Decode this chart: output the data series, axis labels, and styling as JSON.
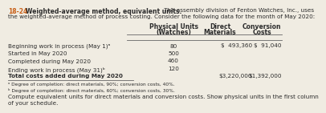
{
  "title_num": "18-24",
  "title_bold": "Weighted-average method, equivalent units.",
  "title_rest": " The assembly division of Fenton Watches, Inc., uses",
  "title_line2": "the weighted-average method of process costing. Consider the following data for the month of May 2020:",
  "col_headers": [
    [
      "Physical Units",
      "(Watches)"
    ],
    [
      "Direct",
      "Materials"
    ],
    [
      "Conversion",
      "Costs"
    ]
  ],
  "rows": [
    {
      "label": "Beginning work in process (May 1)ᵃ",
      "units": "80",
      "dm": "$  493,360",
      "cc": "$  91,040"
    },
    {
      "label": "Started in May 2020",
      "units": "500",
      "dm": "",
      "cc": ""
    },
    {
      "label": "Completed during May 2020",
      "units": "460",
      "dm": "",
      "cc": ""
    },
    {
      "label": "Ending work in process (May 31)ᵇ",
      "units": "120",
      "dm": "",
      "cc": ""
    },
    {
      "label": "Total costs added during May 2020",
      "units": "",
      "dm": "$3,220,000",
      "cc": "$1,392,000"
    }
  ],
  "footnote_a": "ᵃ Degree of completion: direct materials, 90%; conversion costs, 40%.",
  "footnote_b": "ᵇ Degree of completion: direct materials, 60%; conversion costs, 30%.",
  "bottom1": "Compute equivalent units for direct materials and conversion costs. Show physical units in the first column",
  "bottom2": "of your schedule.",
  "orange": "#c8611a",
  "dark": "#2c2c2c",
  "bg": "#f0ece2"
}
